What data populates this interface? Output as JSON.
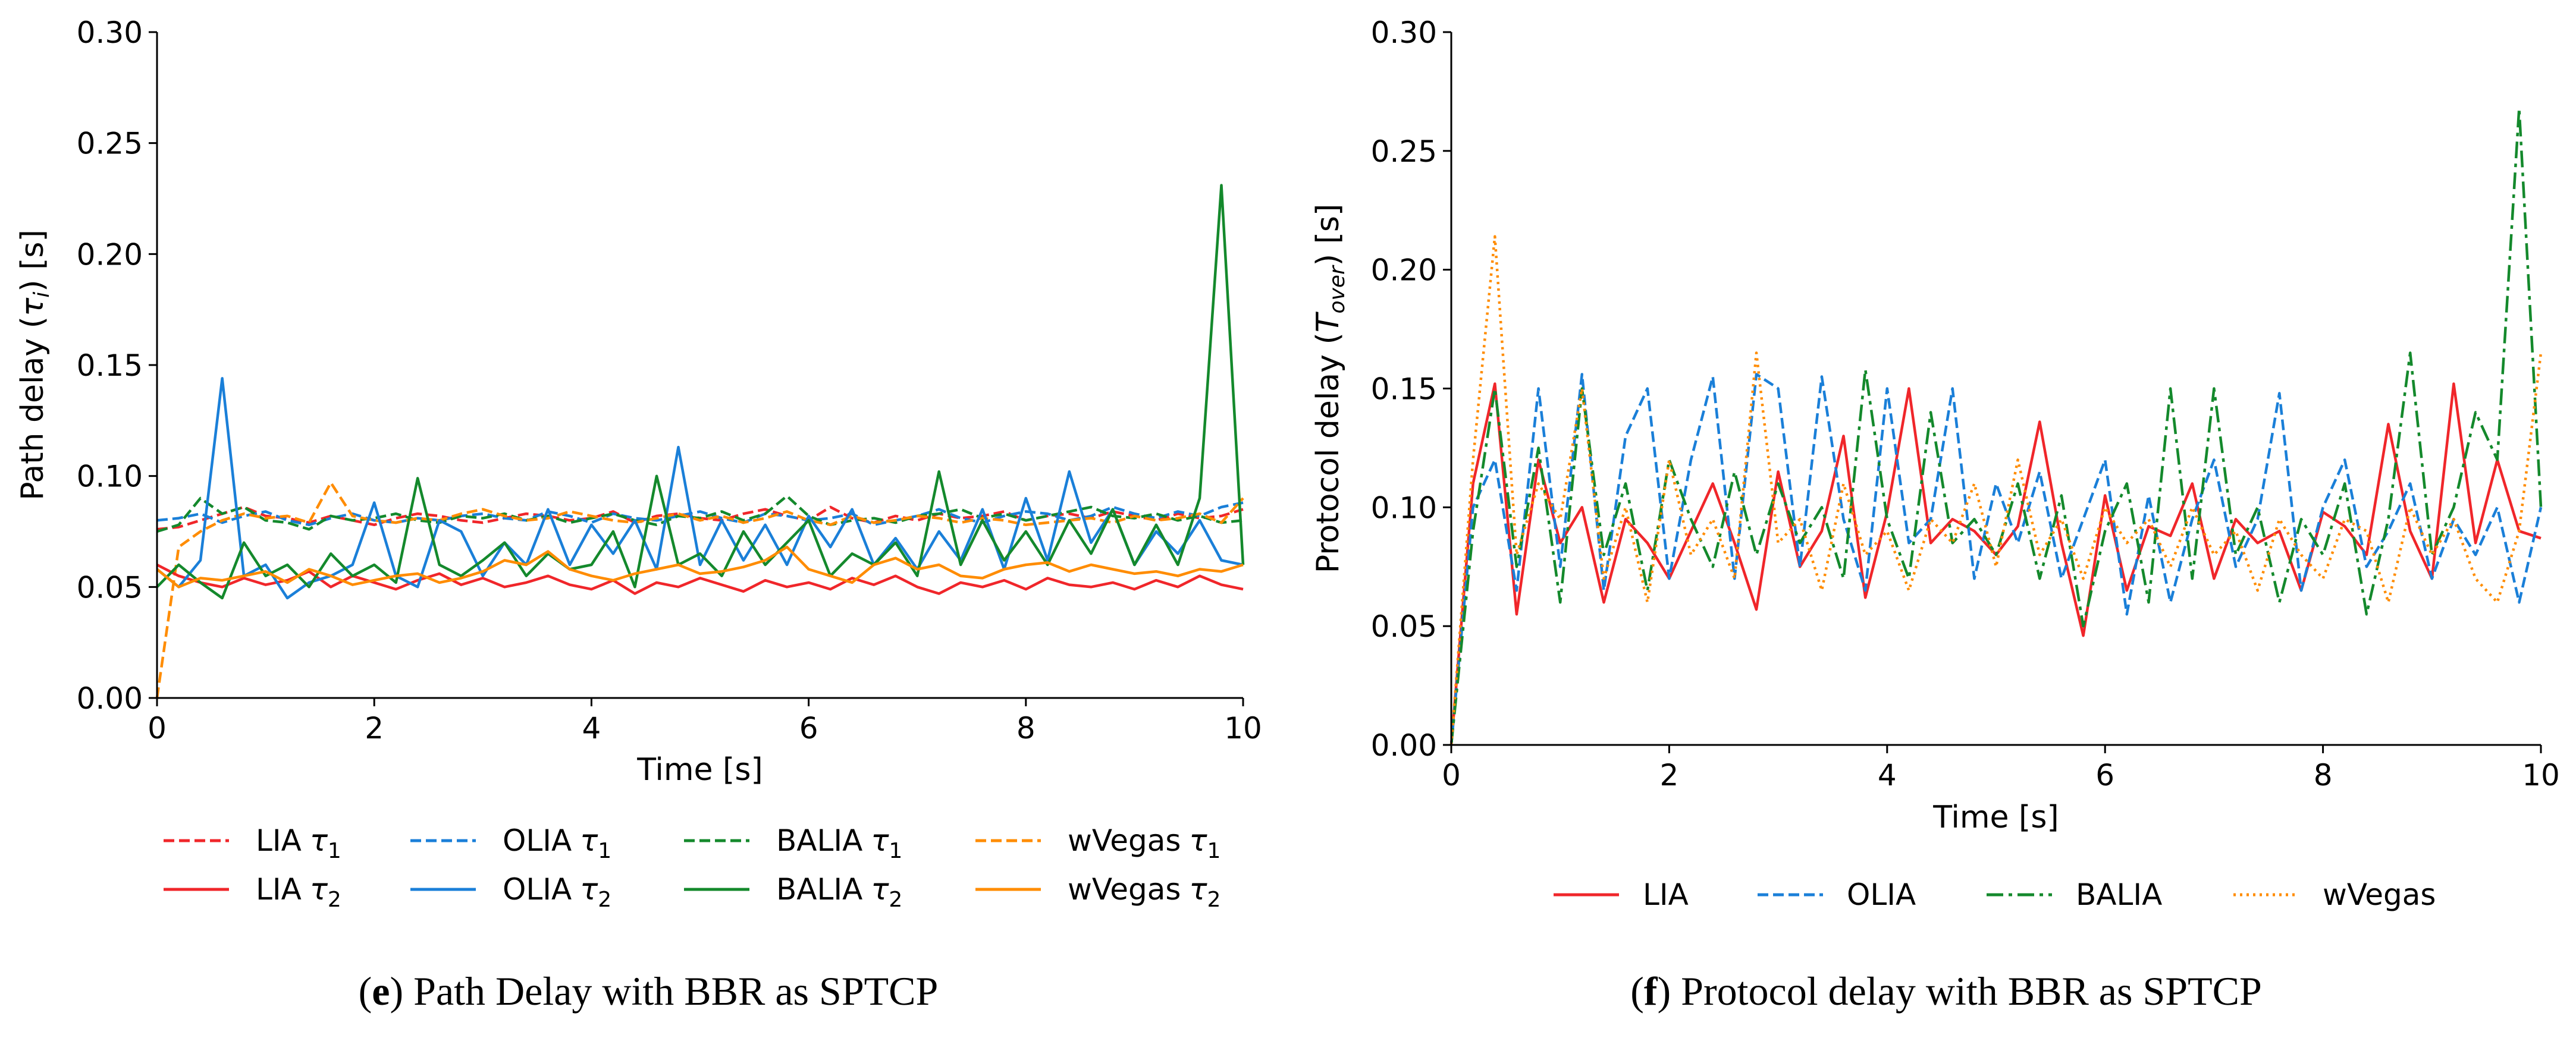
{
  "colors": {
    "LIA": "#f0262a",
    "OLIA": "#1a7fd8",
    "BALIA": "#14892c",
    "wVegas": "#ff8c00"
  },
  "chart_data": [
    {
      "type": "line",
      "caption": {
        "label": "e",
        "text": "Path Delay with BBR as SPTCP"
      },
      "xlabel": "Time [s]",
      "ylabel": {
        "pre": "Path delay (",
        "sym": "τ",
        "sub": "i",
        "post": ") [s]"
      },
      "xlim": [
        0,
        10
      ],
      "ylim": [
        0,
        0.3
      ],
      "xticks": [
        "0",
        "2",
        "4",
        "6",
        "8",
        "10"
      ],
      "yticks": [
        "0.00",
        "0.05",
        "0.10",
        "0.15",
        "0.20",
        "0.25",
        "0.30"
      ],
      "grid": false,
      "legend_placement": "bottom",
      "x_step": 0.2,
      "series": [
        {
          "name": "LIA",
          "sub": "1",
          "color_key": "LIA",
          "style": "dashed",
          "values": [
            0.076,
            0.077,
            0.08,
            0.083,
            0.086,
            0.082,
            0.081,
            0.079,
            0.082,
            0.08,
            0.078,
            0.081,
            0.083,
            0.082,
            0.08,
            0.079,
            0.081,
            0.083,
            0.082,
            0.08,
            0.081,
            0.084,
            0.079,
            0.082,
            0.083,
            0.081,
            0.08,
            0.083,
            0.085,
            0.082,
            0.08,
            0.086,
            0.081,
            0.079,
            0.082,
            0.08,
            0.083,
            0.081,
            0.082,
            0.084,
            0.08,
            0.082,
            0.083,
            0.081,
            0.084,
            0.082,
            0.08,
            0.083,
            0.081,
            0.082,
            0.085
          ]
        },
        {
          "name": "OLIA",
          "sub": "1",
          "color_key": "OLIA",
          "style": "dashed",
          "values": [
            0.08,
            0.081,
            0.083,
            0.079,
            0.082,
            0.084,
            0.08,
            0.078,
            0.081,
            0.083,
            0.08,
            0.079,
            0.081,
            0.08,
            0.082,
            0.083,
            0.081,
            0.08,
            0.084,
            0.082,
            0.079,
            0.083,
            0.081,
            0.08,
            0.082,
            0.084,
            0.081,
            0.079,
            0.083,
            0.082,
            0.08,
            0.081,
            0.083,
            0.078,
            0.08,
            0.082,
            0.085,
            0.081,
            0.079,
            0.082,
            0.084,
            0.083,
            0.08,
            0.082,
            0.086,
            0.083,
            0.081,
            0.084,
            0.082,
            0.086,
            0.088
          ]
        },
        {
          "name": "BALIA",
          "sub": "1",
          "color_key": "BALIA",
          "style": "dashed",
          "values": [
            0.075,
            0.078,
            0.09,
            0.083,
            0.086,
            0.08,
            0.079,
            0.076,
            0.082,
            0.08,
            0.081,
            0.083,
            0.08,
            0.079,
            0.082,
            0.081,
            0.083,
            0.08,
            0.082,
            0.079,
            0.081,
            0.083,
            0.08,
            0.078,
            0.082,
            0.081,
            0.084,
            0.08,
            0.083,
            0.091,
            0.082,
            0.078,
            0.08,
            0.081,
            0.079,
            0.082,
            0.083,
            0.085,
            0.081,
            0.083,
            0.08,
            0.082,
            0.084,
            0.086,
            0.082,
            0.081,
            0.083,
            0.08,
            0.082,
            0.079,
            0.08
          ]
        },
        {
          "name": "wVegas",
          "sub": "1",
          "color_key": "wVegas",
          "style": "dashed",
          "values": [
            0.0,
            0.068,
            0.075,
            0.08,
            0.083,
            0.081,
            0.082,
            0.079,
            0.097,
            0.082,
            0.08,
            0.079,
            0.081,
            0.08,
            0.083,
            0.085,
            0.082,
            0.08,
            0.081,
            0.084,
            0.082,
            0.08,
            0.079,
            0.081,
            0.083,
            0.08,
            0.082,
            0.079,
            0.081,
            0.084,
            0.08,
            0.078,
            0.082,
            0.079,
            0.08,
            0.082,
            0.081,
            0.079,
            0.081,
            0.08,
            0.078,
            0.079,
            0.08,
            0.081,
            0.079,
            0.082,
            0.08,
            0.081,
            0.083,
            0.079,
            0.09
          ]
        },
        {
          "name": "LIA",
          "sub": "2",
          "color_key": "LIA",
          "style": "solid",
          "values": [
            0.06,
            0.055,
            0.052,
            0.05,
            0.054,
            0.051,
            0.053,
            0.057,
            0.05,
            0.055,
            0.052,
            0.049,
            0.053,
            0.056,
            0.051,
            0.054,
            0.05,
            0.052,
            0.055,
            0.051,
            0.049,
            0.053,
            0.047,
            0.052,
            0.05,
            0.054,
            0.051,
            0.048,
            0.053,
            0.05,
            0.052,
            0.049,
            0.054,
            0.051,
            0.055,
            0.05,
            0.047,
            0.052,
            0.05,
            0.053,
            0.049,
            0.054,
            0.051,
            0.05,
            0.052,
            0.049,
            0.053,
            0.05,
            0.055,
            0.051,
            0.049
          ]
        },
        {
          "name": "OLIA",
          "sub": "2",
          "color_key": "OLIA",
          "style": "solid",
          "values": [
            0.058,
            0.05,
            0.062,
            0.144,
            0.055,
            0.06,
            0.045,
            0.052,
            0.055,
            0.06,
            0.088,
            0.055,
            0.05,
            0.08,
            0.075,
            0.055,
            0.07,
            0.06,
            0.085,
            0.06,
            0.078,
            0.065,
            0.08,
            0.058,
            0.113,
            0.06,
            0.08,
            0.062,
            0.078,
            0.06,
            0.082,
            0.068,
            0.085,
            0.06,
            0.072,
            0.058,
            0.075,
            0.062,
            0.085,
            0.058,
            0.09,
            0.062,
            0.102,
            0.07,
            0.085,
            0.06,
            0.075,
            0.065,
            0.08,
            0.062,
            0.06
          ]
        },
        {
          "name": "BALIA",
          "sub": "2",
          "color_key": "BALIA",
          "style": "solid",
          "values": [
            0.05,
            0.06,
            0.052,
            0.045,
            0.07,
            0.055,
            0.06,
            0.05,
            0.065,
            0.055,
            0.06,
            0.052,
            0.099,
            0.06,
            0.055,
            0.062,
            0.07,
            0.055,
            0.065,
            0.058,
            0.06,
            0.075,
            0.05,
            0.1,
            0.06,
            0.065,
            0.055,
            0.075,
            0.06,
            0.07,
            0.08,
            0.055,
            0.065,
            0.06,
            0.07,
            0.055,
            0.102,
            0.06,
            0.08,
            0.062,
            0.075,
            0.06,
            0.08,
            0.065,
            0.085,
            0.06,
            0.078,
            0.06,
            0.09,
            0.231,
            0.06
          ]
        },
        {
          "name": "wVegas",
          "sub": "2",
          "color_key": "wVegas",
          "style": "solid",
          "values": [
            0.058,
            0.05,
            0.054,
            0.053,
            0.055,
            0.057,
            0.052,
            0.058,
            0.055,
            0.051,
            0.053,
            0.055,
            0.056,
            0.052,
            0.054,
            0.057,
            0.062,
            0.06,
            0.066,
            0.058,
            0.055,
            0.053,
            0.056,
            0.058,
            0.06,
            0.056,
            0.057,
            0.059,
            0.062,
            0.068,
            0.058,
            0.055,
            0.052,
            0.06,
            0.063,
            0.058,
            0.06,
            0.055,
            0.054,
            0.058,
            0.06,
            0.061,
            0.057,
            0.06,
            0.058,
            0.056,
            0.057,
            0.055,
            0.058,
            0.057,
            0.06
          ]
        }
      ]
    },
    {
      "type": "line",
      "caption": {
        "label": "f",
        "text": "Protocol delay with BBR as SPTCP"
      },
      "xlabel": "Time [s]",
      "ylabel": {
        "pre": "Protocol delay (",
        "sym": "T",
        "sub": "over",
        "post": ") [s]"
      },
      "xlim": [
        0,
        10
      ],
      "ylim": [
        0,
        0.3
      ],
      "xticks": [
        "0",
        "2",
        "4",
        "6",
        "8",
        "10"
      ],
      "yticks": [
        "0.00",
        "0.05",
        "0.10",
        "0.15",
        "0.20",
        "0.25",
        "0.30"
      ],
      "grid": false,
      "legend_placement": "bottom",
      "x_step": 0.2,
      "series": [
        {
          "name": "LIA",
          "sub": "",
          "color_key": "LIA",
          "style": "solid",
          "values": [
            0.0,
            0.11,
            0.152,
            0.055,
            0.12,
            0.085,
            0.1,
            0.06,
            0.095,
            0.085,
            0.07,
            0.09,
            0.11,
            0.085,
            0.057,
            0.115,
            0.075,
            0.09,
            0.13,
            0.062,
            0.098,
            0.15,
            0.085,
            0.095,
            0.09,
            0.08,
            0.092,
            0.136,
            0.085,
            0.046,
            0.105,
            0.065,
            0.092,
            0.088,
            0.11,
            0.07,
            0.095,
            0.085,
            0.09,
            0.065,
            0.098,
            0.092,
            0.08,
            0.135,
            0.09,
            0.07,
            0.152,
            0.085,
            0.12,
            0.09,
            0.087
          ]
        },
        {
          "name": "OLIA",
          "sub": "",
          "color_key": "OLIA",
          "style": "dashed",
          "values": [
            0.0,
            0.1,
            0.12,
            0.065,
            0.15,
            0.075,
            0.156,
            0.065,
            0.13,
            0.15,
            0.07,
            0.12,
            0.155,
            0.07,
            0.156,
            0.15,
            0.075,
            0.155,
            0.095,
            0.065,
            0.15,
            0.085,
            0.095,
            0.15,
            0.07,
            0.11,
            0.085,
            0.115,
            0.07,
            0.095,
            0.12,
            0.055,
            0.105,
            0.06,
            0.095,
            0.12,
            0.075,
            0.095,
            0.148,
            0.065,
            0.1,
            0.12,
            0.075,
            0.09,
            0.11,
            0.07,
            0.095,
            0.08,
            0.1,
            0.06,
            0.1
          ]
        },
        {
          "name": "BALIA",
          "sub": "",
          "color_key": "BALIA",
          "style": "dashdot",
          "values": [
            0.0,
            0.09,
            0.15,
            0.075,
            0.125,
            0.06,
            0.15,
            0.08,
            0.11,
            0.065,
            0.12,
            0.095,
            0.075,
            0.115,
            0.08,
            0.11,
            0.085,
            0.1,
            0.07,
            0.158,
            0.095,
            0.07,
            0.14,
            0.085,
            0.095,
            0.08,
            0.11,
            0.07,
            0.105,
            0.05,
            0.09,
            0.11,
            0.06,
            0.15,
            0.07,
            0.15,
            0.08,
            0.1,
            0.06,
            0.095,
            0.08,
            0.11,
            0.055,
            0.095,
            0.165,
            0.08,
            0.1,
            0.14,
            0.12,
            0.268,
            0.1
          ]
        },
        {
          "name": "wVegas",
          "sub": "",
          "color_key": "wVegas",
          "style": "dotted",
          "values": [
            0.0,
            0.12,
            0.214,
            0.08,
            0.11,
            0.095,
            0.15,
            0.07,
            0.1,
            0.06,
            0.12,
            0.08,
            0.095,
            0.07,
            0.165,
            0.085,
            0.095,
            0.065,
            0.11,
            0.08,
            0.09,
            0.065,
            0.095,
            0.085,
            0.11,
            0.075,
            0.12,
            0.08,
            0.095,
            0.07,
            0.1,
            0.085,
            0.095,
            0.075,
            0.1,
            0.08,
            0.09,
            0.065,
            0.095,
            0.08,
            0.07,
            0.095,
            0.09,
            0.06,
            0.1,
            0.08,
            0.095,
            0.07,
            0.06,
            0.09,
            0.165
          ]
        }
      ]
    }
  ]
}
